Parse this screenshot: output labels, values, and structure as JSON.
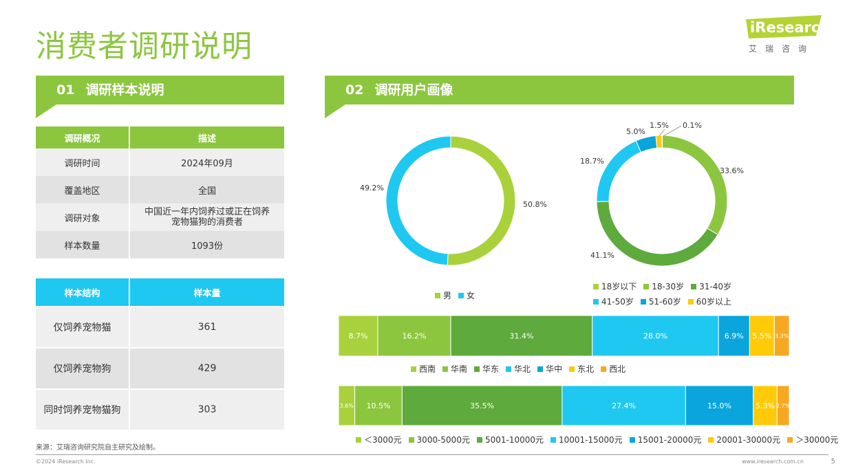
{
  "page": {
    "title": "消费者调研说明",
    "logo_text": "iResearch",
    "logo_sub": "艾瑞咨询",
    "source": "来源：艾瑞咨询研究院自主研究及绘制。",
    "copyright": "©2024 iResearch Inc.",
    "website": "www.iresearch.com.cn",
    "page_number": "5"
  },
  "colors": {
    "green_light": "#A9D13B",
    "green": "#8CC63F",
    "green_dark": "#5EAA3C",
    "blue_light": "#1FC8F0",
    "blue": "#0AA5DD",
    "yellow": "#FFCB08",
    "orange": "#F7A823"
  },
  "section1": {
    "num": "01",
    "title": "调研样本说明",
    "table1": {
      "headers": [
        "调研概况",
        "描述"
      ],
      "rows": [
        [
          "调研时间",
          "2024年09月"
        ],
        [
          "覆盖地区",
          "全国"
        ],
        [
          "调研对象",
          "中国近一年内饲养过或正在饲养宠物猫狗的消费者"
        ],
        [
          "样本数量",
          "1093份"
        ]
      ]
    },
    "table2": {
      "headers": [
        "样本结构",
        "样本量"
      ],
      "rows": [
        [
          "仅饲养宠物猫",
          "361"
        ],
        [
          "仅饲养宠物狗",
          "429"
        ],
        [
          "同时饲养宠物猫狗",
          "303"
        ]
      ]
    }
  },
  "section2": {
    "num": "02",
    "title": "调研用户画像"
  },
  "chart_data": [
    {
      "type": "pie",
      "variant": "donut",
      "series": [
        {
          "name": "男",
          "value": 50.8,
          "label": "50.8%"
        },
        {
          "name": "女",
          "value": 49.2,
          "label": "49.2%"
        }
      ],
      "legend_position": "bottom"
    },
    {
      "type": "pie",
      "variant": "donut",
      "series": [
        {
          "name": "18岁以下",
          "value": 0.1,
          "label": "0.1%"
        },
        {
          "name": "18-30岁",
          "value": 33.6,
          "label": "33.6%"
        },
        {
          "name": "31-40岁",
          "value": 41.1,
          "label": "41.1%"
        },
        {
          "name": "41-50岁",
          "value": 18.7,
          "label": "18.7%"
        },
        {
          "name": "51-60岁",
          "value": 5.0,
          "label": "5.0%"
        },
        {
          "name": "60岁以上",
          "value": 1.5,
          "label": "1.5%"
        }
      ],
      "legend_position": "bottom"
    },
    {
      "type": "bar",
      "variant": "stacked-100-horizontal",
      "series": [
        {
          "name": "西南",
          "value": 8.7,
          "label": "8.7%"
        },
        {
          "name": "华南",
          "value": 16.2,
          "label": "16.2%"
        },
        {
          "name": "华东",
          "value": 31.4,
          "label": "31.4%"
        },
        {
          "name": "华北",
          "value": 28.0,
          "label": "28.0%"
        },
        {
          "name": "华中",
          "value": 6.9,
          "label": "6.9%"
        },
        {
          "name": "东北",
          "value": 5.5,
          "label": "5.5%"
        },
        {
          "name": "西北",
          "value": 3.3,
          "label": "3.3%"
        }
      ],
      "legend_position": "bottom"
    },
    {
      "type": "bar",
      "variant": "stacked-100-horizontal",
      "series": [
        {
          "name": "＜3000元",
          "value": 3.6,
          "label": "3.6%"
        },
        {
          "name": "3000-5000元",
          "value": 10.5,
          "label": "10.5%"
        },
        {
          "name": "5001-10000元",
          "value": 35.5,
          "label": "35.5%"
        },
        {
          "name": "10001-15000元",
          "value": 27.4,
          "label": "27.4%"
        },
        {
          "name": "15001-20000元",
          "value": 15.0,
          "label": "15.0%"
        },
        {
          "name": "20001-30000元",
          "value": 5.3,
          "label": "5.3%"
        },
        {
          "name": "＞30000元",
          "value": 2.7,
          "label": "2.7%"
        }
      ],
      "legend_position": "bottom"
    }
  ]
}
